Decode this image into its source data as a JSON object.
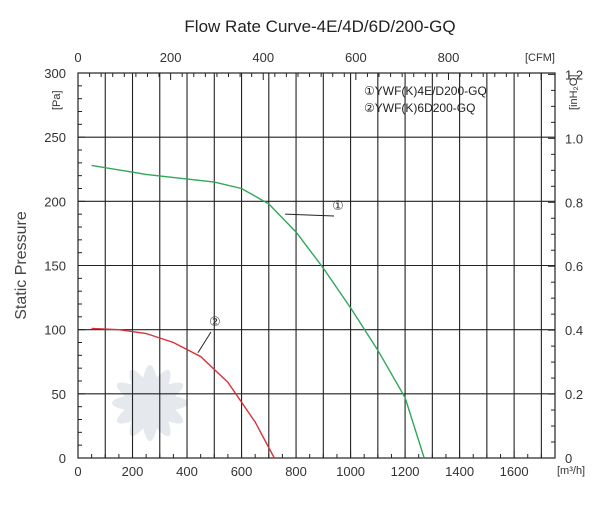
{
  "chart_data": {
    "type": "line",
    "title": "Flow Rate Curve-4E/4D/6D/200-GQ",
    "ylabel": "Static Pressure",
    "x_unit": "[m³/h]",
    "y_unit": "[Pa]",
    "top_unit": "[CFM]",
    "right_unit": "[inH₂O]",
    "xlim": [
      0,
      1750
    ],
    "ylim": [
      0,
      300
    ],
    "x_ticks": [
      0,
      200,
      400,
      600,
      800,
      1000,
      1200,
      1400,
      1600
    ],
    "y_ticks": [
      0,
      50,
      100,
      150,
      200,
      250,
      300
    ],
    "top_ticks": [
      0,
      200,
      400,
      600,
      800
    ],
    "right_ticks": [
      "0",
      "0.2",
      "0.4",
      "0.6",
      "0.8",
      "1.0",
      "1.2"
    ],
    "grid": true,
    "legend_position": "top-right",
    "legend": [
      "①YWF(K)4E/D200-GQ",
      "②YWF(K)6D200-GQ"
    ],
    "series": [
      {
        "name": "①YWF(K)4E/D200-GQ",
        "marker": "①",
        "color": "#2fa85a",
        "x": [
          50,
          250,
          500,
          600,
          700,
          800,
          900,
          1000,
          1100,
          1200,
          1270
        ],
        "y": [
          228,
          221,
          215,
          210,
          198,
          176,
          148,
          117,
          84,
          47,
          0
        ]
      },
      {
        "name": "②YWF(K)6D200-GQ",
        "marker": "②",
        "color": "#d9303a",
        "x": [
          50,
          150,
          250,
          350,
          450,
          550,
          650,
          720
        ],
        "y": [
          101,
          100,
          97,
          90,
          79,
          59,
          28,
          0
        ]
      }
    ]
  }
}
